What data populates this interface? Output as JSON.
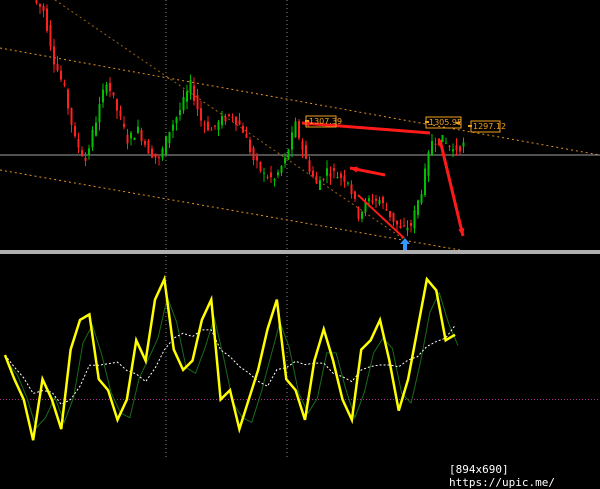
{
  "chart_data": [
    {
      "type": "candlestick",
      "pane": "price",
      "ylim": [
        1270,
        1345
      ],
      "closes": [
        1342,
        1327,
        1318,
        1303,
        1297,
        1309,
        1321,
        1312,
        1303,
        1306,
        1300,
        1297,
        1306,
        1312,
        1319.5,
        1309,
        1306,
        1309,
        1310.5,
        1306,
        1297,
        1292.5,
        1291,
        1297,
        1307.5,
        1297,
        1289.5,
        1294,
        1292.5,
        1291,
        1280.5,
        1285,
        1285,
        1280.5,
        1276,
        1277.5,
        1288,
        1303,
        1303,
        1300,
        1301.5
      ],
      "price_labels": [
        "1307.39",
        "1305.95",
        "1297.12"
      ],
      "horizontal_line": 1298.5,
      "colors": {
        "up": "#00c000",
        "down": "#ff2020",
        "arrow": "#ff1a1a",
        "channel": "#e09020",
        "hline": "#a0a0a0",
        "buy_arrow": "#3399ff"
      }
    },
    {
      "type": "line",
      "pane": "oscillator",
      "ylim": [
        0,
        100
      ],
      "values": [
        54,
        41,
        30,
        8,
        41,
        30,
        14,
        57,
        73,
        76,
        41,
        35,
        19,
        30,
        62,
        51,
        84,
        95,
        57,
        46,
        51,
        73,
        84,
        30,
        35,
        14,
        30,
        46,
        68,
        84,
        41,
        35,
        19,
        51,
        68,
        51,
        30,
        19,
        57,
        62,
        73,
        51,
        24,
        41,
        68,
        95,
        89,
        62,
        65
      ],
      "colors": {
        "main": "#ffff00",
        "signal": "#ffffff",
        "level": "#b03090"
      }
    }
  ],
  "watermark": "[894x690] https://upic.me/"
}
